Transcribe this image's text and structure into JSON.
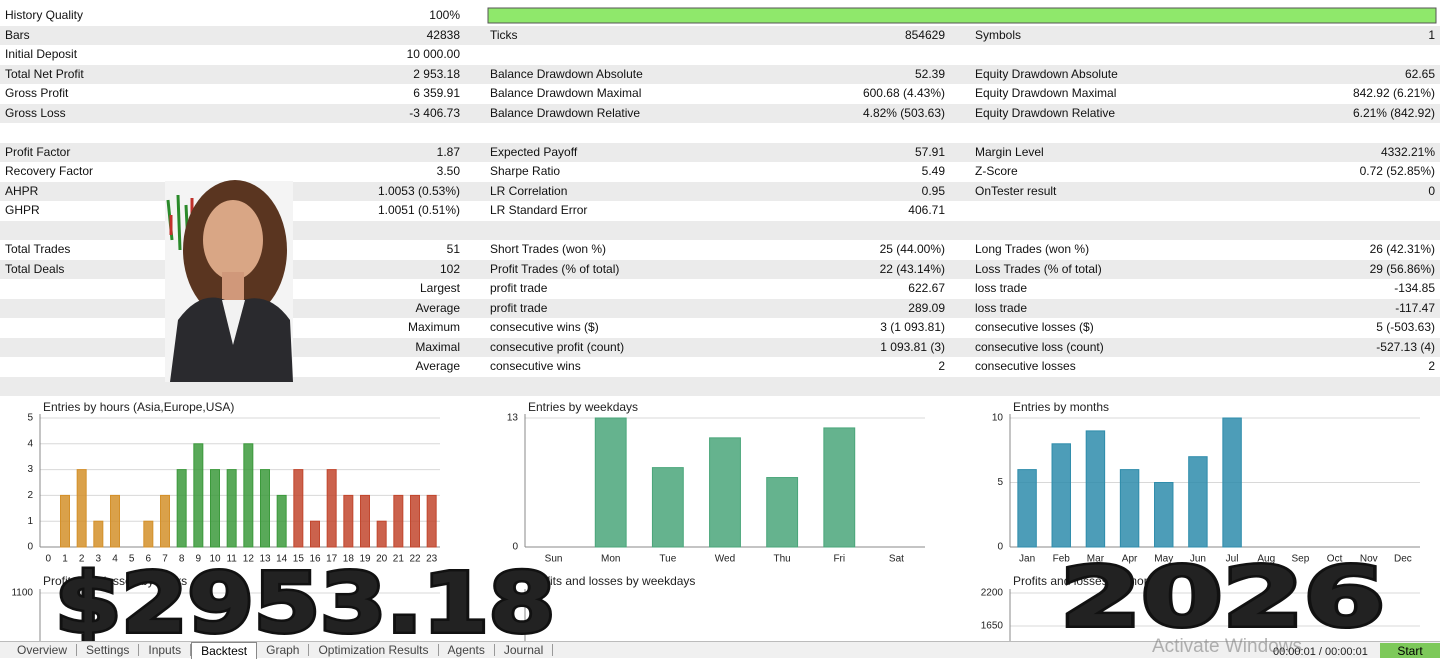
{
  "report": {
    "rows": [
      {
        "c1": "History Quality",
        "c2": "100%"
      },
      {
        "c1": "Bars",
        "c2": "42838",
        "c3": "Ticks",
        "c4": "854629",
        "c5": "Symbols",
        "c6": "1"
      },
      {
        "c1": "Initial Deposit",
        "c2": "10 000.00"
      },
      {
        "c1": "Total Net Profit",
        "c2": "2 953.18",
        "c3": "Balance Drawdown Absolute",
        "c4": "52.39",
        "c5": "Equity Drawdown Absolute",
        "c6": "62.65"
      },
      {
        "c1": "Gross Profit",
        "c2": "6 359.91",
        "c3": "Balance Drawdown Maximal",
        "c4": "600.68 (4.43%)",
        "c5": "Equity Drawdown Maximal",
        "c6": "842.92 (6.21%)"
      },
      {
        "c1": "Gross Loss",
        "c2": "-3 406.73",
        "c3": "Balance Drawdown Relative",
        "c4": "4.82% (503.63)",
        "c5": "Equity Drawdown Relative",
        "c6": "6.21% (842.92)"
      },
      {},
      {
        "c1": "Profit Factor",
        "c2": "1.87",
        "c3": "Expected Payoff",
        "c4": "57.91",
        "c5": "Margin Level",
        "c6": "4332.21%"
      },
      {
        "c1": "Recovery Factor",
        "c2": "3.50",
        "c3": "Sharpe Ratio",
        "c4": "5.49",
        "c5": "Z-Score",
        "c6": "0.72 (52.85%)"
      },
      {
        "c1": "AHPR",
        "c2": "1.0053 (0.53%)",
        "c3": "LR Correlation",
        "c4": "0.95",
        "c5": "OnTester result",
        "c6": "0"
      },
      {
        "c1": "GHPR",
        "c2": "1.0051 (0.51%)",
        "c3": "LR Standard Error",
        "c4": "406.71"
      },
      {},
      {
        "c1": "Total Trades",
        "c2": "51",
        "c3": "Short Trades (won %)",
        "c4": "25 (44.00%)",
        "c5": "Long Trades (won %)",
        "c6": "26 (42.31%)"
      },
      {
        "c1": "Total Deals",
        "c2": "102",
        "c3": "Profit Trades (% of total)",
        "c4": "22 (43.14%)",
        "c5": "Loss Trades (% of total)",
        "c6": "29 (56.86%)"
      },
      {
        "c2": "Largest",
        "c3": "profit trade",
        "c4": "622.67",
        "c5": "loss trade",
        "c6": "-134.85"
      },
      {
        "c2": "Average",
        "c3": "profit trade",
        "c4": "289.09",
        "c5": "loss trade",
        "c6": "-117.47"
      },
      {
        "c2": "Maximum",
        "c3": "consecutive wins ($)",
        "c4": "3 (1 093.81)",
        "c5": "consecutive losses ($)",
        "c6": "5 (-503.63)"
      },
      {
        "c2": "Maximal",
        "c3": "consecutive profit (count)",
        "c4": "1 093.81 (3)",
        "c5": "consecutive loss (count)",
        "c6": "-527.13 (4)"
      },
      {
        "c2": "Average",
        "c3": "consecutive wins",
        "c4": "2",
        "c5": "consecutive losses",
        "c6": "2"
      },
      {}
    ]
  },
  "chart_data": [
    {
      "type": "bar",
      "title": "Entries by hours (Asia,Europe,USA)",
      "categories": [
        "0",
        "1",
        "2",
        "3",
        "4",
        "5",
        "6",
        "7",
        "8",
        "9",
        "10",
        "11",
        "12",
        "13",
        "14",
        "15",
        "16",
        "17",
        "18",
        "19",
        "20",
        "21",
        "22",
        "23"
      ],
      "values": [
        0,
        2,
        3,
        1,
        2,
        0,
        1,
        2,
        3,
        4,
        3,
        3,
        4,
        3,
        2,
        3,
        1,
        3,
        2,
        2,
        1,
        2,
        2,
        2
      ],
      "colors": [
        "#d4902a",
        "#d4902a",
        "#d4902a",
        "#d4902a",
        "#d4902a",
        "#d4902a",
        "#d4902a",
        "#d4902a",
        "#3c9a3c",
        "#3c9a3c",
        "#3c9a3c",
        "#3c9a3c",
        "#3c9a3c",
        "#3c9a3c",
        "#3c9a3c",
        "#c2472e",
        "#c2472e",
        "#c2472e",
        "#c2472e",
        "#c2472e",
        "#c2472e",
        "#c2472e",
        "#c2472e",
        "#c2472e"
      ],
      "ylim": [
        0,
        5
      ],
      "yticks": [
        0,
        1,
        2,
        3,
        4,
        5
      ],
      "grid": true
    },
    {
      "type": "bar",
      "title": "Entries by weekdays",
      "categories": [
        "Sun",
        "Mon",
        "Tue",
        "Wed",
        "Thu",
        "Fri",
        "Sat"
      ],
      "values": [
        0,
        13,
        8,
        11,
        7,
        12,
        0
      ],
      "color": "#4aa67a",
      "ylim": [
        0,
        13
      ],
      "yticks": [
        0,
        13
      ],
      "grid": true
    },
    {
      "type": "bar",
      "title": "Entries by months",
      "categories": [
        "Jan",
        "Feb",
        "Mar",
        "Apr",
        "May",
        "Jun",
        "Jul",
        "Aug",
        "Sep",
        "Oct",
        "Nov",
        "Dec"
      ],
      "values": [
        6,
        8,
        9,
        6,
        5,
        7,
        10,
        0,
        0,
        0,
        0,
        0
      ],
      "color": "#2e8cab",
      "ylim": [
        0,
        10
      ],
      "yticks": [
        0,
        5,
        10
      ],
      "grid": true
    },
    {
      "type": "bar",
      "title": "Profits and losses by hours",
      "ylim": [
        0,
        1100
      ],
      "yticks": [
        1100
      ],
      "grid": true
    },
    {
      "type": "bar",
      "title": "Profits and losses by weekdays",
      "grid": true
    },
    {
      "type": "bar",
      "title": "Profits and losses by months",
      "ylim": [
        1100,
        2200
      ],
      "yticks": [
        1650,
        2200
      ],
      "grid": true
    }
  ],
  "overlay": {
    "amount": "$2953.18",
    "year": "2026"
  },
  "tabs": {
    "items": [
      "Overview",
      "Settings",
      "Inputs",
      "Backtest",
      "Graph",
      "Optimization Results",
      "Agents",
      "Journal"
    ],
    "active": 3
  },
  "status": {
    "watermark": "Activate Windows",
    "timer": "00:00:01 / 00:00:01",
    "button": "Start"
  }
}
